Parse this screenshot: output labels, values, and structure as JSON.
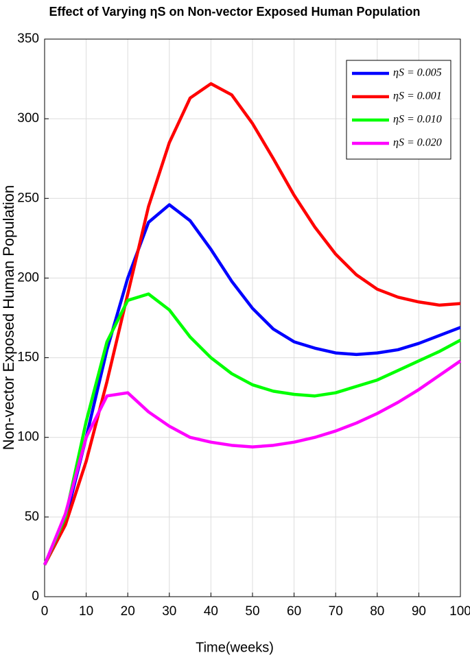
{
  "chart_data": {
    "type": "line",
    "title": "Effect of Varying ηS on Non-vector Exposed Human Population",
    "x_label": "Time(weeks)",
    "y_label": "Non-vector Exposed Human Population",
    "x": [
      0,
      5,
      10,
      15,
      20,
      25,
      30,
      35,
      40,
      45,
      50,
      55,
      60,
      65,
      70,
      75,
      80,
      85,
      90,
      95,
      100
    ],
    "series": [
      {
        "name": "ηS = 0.005",
        "color": "#0000ff",
        "values": [
          20,
          48,
          100,
          155,
          200,
          235,
          246,
          236,
          218,
          198,
          181,
          168,
          160,
          156,
          153,
          152,
          153,
          155,
          159,
          164,
          169
        ]
      },
      {
        "name": "ηS = 0.001",
        "color": "#ff0000",
        "values": [
          20,
          45,
          85,
          135,
          190,
          245,
          285,
          313,
          322,
          315,
          297,
          275,
          252,
          232,
          215,
          202,
          193,
          188,
          185,
          183,
          184
        ]
      },
      {
        "name": "ηS = 0.010",
        "color": "#00ff00",
        "values": [
          20,
          50,
          110,
          160,
          186,
          190,
          180,
          163,
          150,
          140,
          133,
          129,
          127,
          126,
          128,
          132,
          136,
          142,
          148,
          154,
          161
        ]
      },
      {
        "name": "ηS = 0.020",
        "color": "#ff00ff",
        "values": [
          20,
          52,
          100,
          126,
          128,
          116,
          107,
          100,
          97,
          95,
          94,
          95,
          97,
          100,
          104,
          109,
          115,
          122,
          130,
          139,
          148
        ]
      }
    ],
    "xlim": [
      0,
      100
    ],
    "xticks": [
      0,
      10,
      20,
      30,
      40,
      50,
      60,
      70,
      80,
      90,
      100
    ],
    "ylim": [
      0,
      350
    ],
    "yticks": [
      0,
      50,
      100,
      150,
      200,
      250,
      300,
      350
    ],
    "grid": true,
    "legend": "upper-right"
  }
}
